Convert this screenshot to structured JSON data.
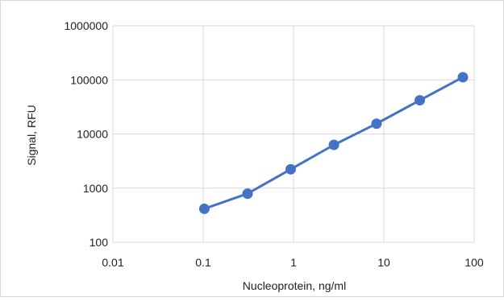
{
  "chart_data": {
    "type": "scatter",
    "title": "",
    "xlabel": "Nucleoprotein, ng/ml",
    "ylabel": "Signal, RFU",
    "x_scale": "log",
    "y_scale": "log",
    "xlim": [
      0.01,
      100
    ],
    "ylim": [
      100,
      1000000
    ],
    "x_ticks": [
      0.01,
      0.1,
      1,
      10,
      100
    ],
    "x_tick_labels": [
      "0.01",
      "0.1",
      "1",
      "10",
      "100"
    ],
    "y_ticks": [
      100,
      1000,
      10000,
      100000,
      1000000
    ],
    "y_tick_labels": [
      "100",
      "1000",
      "10000",
      "100000",
      "1000000"
    ],
    "grid": true,
    "legend": "none",
    "series": [
      {
        "x": [
          0.103,
          0.31,
          0.93,
          2.8,
          8.3,
          25,
          75
        ],
        "y": [
          415,
          790,
          2230,
          6300,
          15500,
          42000,
          112000
        ],
        "color": "#4472C4",
        "line": true,
        "markers": "circle"
      }
    ]
  }
}
